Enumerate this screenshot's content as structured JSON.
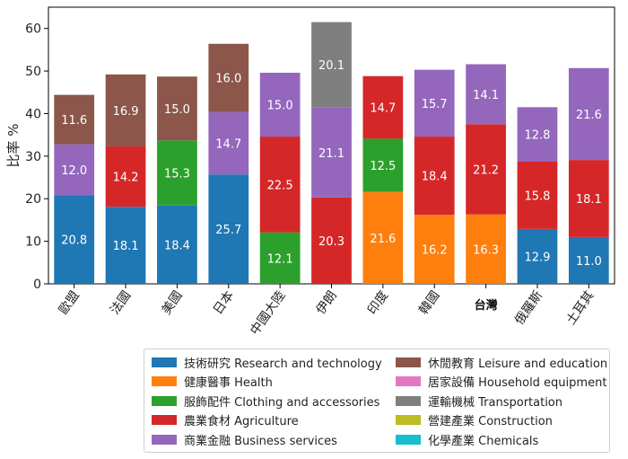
{
  "chart_data": {
    "type": "bar",
    "stacked": true,
    "title": "",
    "xlabel": "",
    "ylabel": "比率 %",
    "ylim": [
      0,
      65
    ],
    "yticks": [
      0,
      10,
      20,
      30,
      40,
      50,
      60
    ],
    "categories": [
      "歐盟",
      "法國",
      "美國",
      "日本",
      "中國大陸",
      "伊朗",
      "印度",
      "韓國",
      "台灣",
      "俄羅斯",
      "土耳其"
    ],
    "highlight_category": "台灣",
    "grid": false,
    "legend_position": "bottom",
    "series": [
      {
        "name": "技術研究 Research and technology",
        "color": "#1f77b4",
        "values": [
          20.8,
          18.1,
          18.4,
          25.7,
          null,
          null,
          null,
          null,
          null,
          12.9,
          11.0
        ]
      },
      {
        "name": "健康醫事 Health",
        "color": "#ff7f0e",
        "values": [
          null,
          null,
          null,
          null,
          null,
          null,
          21.6,
          16.2,
          16.3,
          null,
          null
        ]
      },
      {
        "name": "服飾配件 Clothing and accessories",
        "color": "#2ca02c",
        "values": [
          null,
          null,
          15.3,
          null,
          12.1,
          null,
          12.5,
          null,
          null,
          null,
          null
        ]
      },
      {
        "name": "農業食材 Agriculture",
        "color": "#d62728",
        "values": [
          null,
          14.2,
          null,
          null,
          22.5,
          20.3,
          14.7,
          18.4,
          21.2,
          15.8,
          18.1
        ]
      },
      {
        "name": "商業金融 Business services",
        "color": "#9467bd",
        "values": [
          12.0,
          null,
          null,
          14.7,
          15.0,
          21.1,
          null,
          15.7,
          14.1,
          12.8,
          21.6
        ]
      },
      {
        "name": "休閒教育 Leisure and education",
        "color": "#8c564b",
        "values": [
          11.6,
          16.9,
          15.0,
          16.0,
          null,
          null,
          null,
          null,
          null,
          null,
          null
        ]
      },
      {
        "name": "居家設備 Household equipment",
        "color": "#e377c2",
        "values": [
          null,
          null,
          null,
          null,
          null,
          null,
          null,
          null,
          null,
          null,
          null
        ]
      },
      {
        "name": "運輸機械 Transportation",
        "color": "#7f7f7f",
        "values": [
          null,
          null,
          null,
          null,
          null,
          20.1,
          null,
          null,
          null,
          null,
          null
        ]
      },
      {
        "name": "營建產業 Construction",
        "color": "#bcbd22",
        "values": [
          null,
          null,
          null,
          null,
          null,
          null,
          null,
          null,
          null,
          null,
          null
        ]
      },
      {
        "name": "化學產業 Chemicals",
        "color": "#17becf",
        "values": [
          null,
          null,
          null,
          null,
          null,
          null,
          null,
          null,
          null,
          null,
          null
        ]
      }
    ]
  }
}
